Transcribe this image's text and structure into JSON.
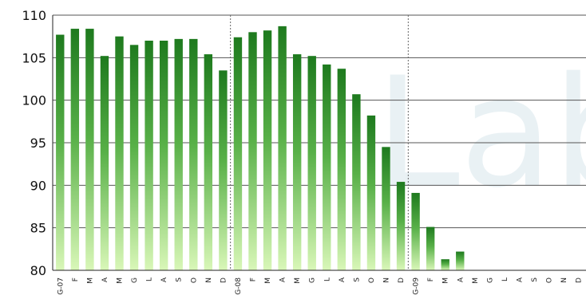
{
  "chart_data": {
    "type": "bar",
    "categories": [
      "G-07",
      "F",
      "M",
      "A",
      "M",
      "G",
      "L",
      "A",
      "S",
      "O",
      "N",
      "D",
      "G-08",
      "F",
      "M",
      "A",
      "M",
      "G",
      "L",
      "A",
      "S",
      "O",
      "N",
      "D",
      "G-09",
      "F",
      "M",
      "A",
      "M",
      "G",
      "L",
      "A",
      "S",
      "O",
      "N",
      "D"
    ],
    "values": [
      107.7,
      108.4,
      108.4,
      105.2,
      107.5,
      106.5,
      107.0,
      107.0,
      107.2,
      107.2,
      105.4,
      103.5,
      107.4,
      108.0,
      108.2,
      108.7,
      105.4,
      105.2,
      104.2,
      103.7,
      100.7,
      98.2,
      94.5,
      90.4,
      89.1,
      85.1,
      81.3,
      82.2,
      null,
      null,
      null,
      null,
      null,
      null,
      null,
      null
    ],
    "ylim": [
      80,
      110
    ],
    "yticks": [
      80,
      85,
      90,
      95,
      100,
      105,
      110
    ],
    "grid": true,
    "year_separators_after": [
      11,
      23
    ],
    "bar_colors": {
      "top": "#1e7a1e",
      "bottom": "#d9f7b8"
    }
  },
  "watermark": "Lab"
}
